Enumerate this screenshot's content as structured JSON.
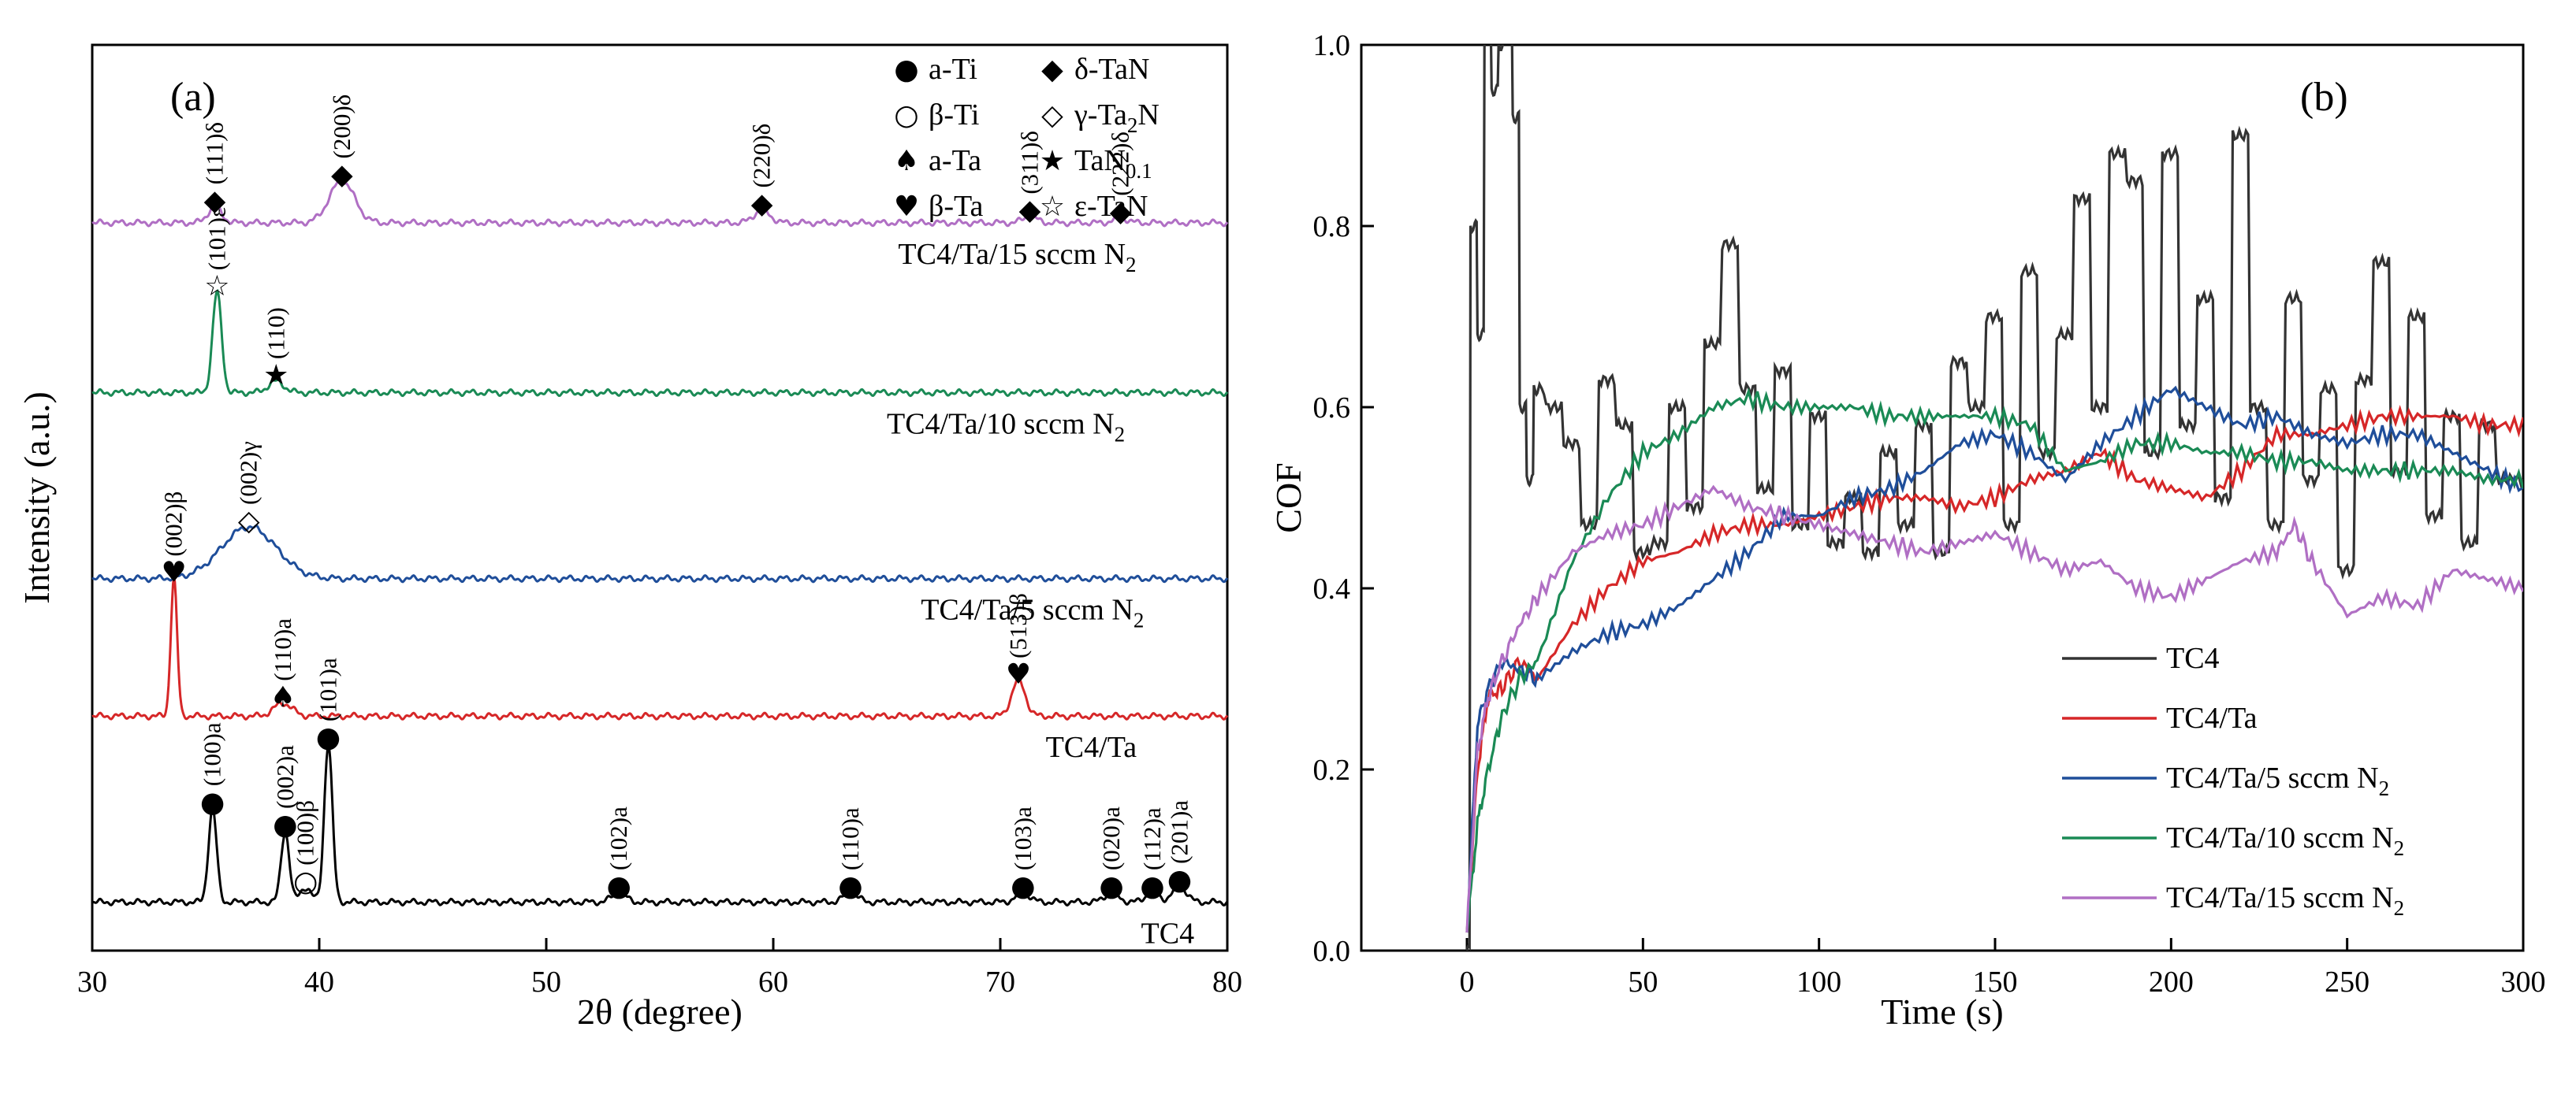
{
  "chart_data": [
    {
      "panel": "(a)",
      "type": "line",
      "title": "",
      "xlabel": "2θ (degree)",
      "ylabel": "Intensity (a.u.)",
      "xlim": [
        30,
        80
      ],
      "xticks": [
        "30",
        "40",
        "50",
        "60",
        "70",
        "80"
      ],
      "xtick_values": [
        30,
        40,
        50,
        60,
        70,
        80
      ],
      "ylim": [
        0,
        5.6
      ],
      "phase_legend": [
        {
          "symbol": "●",
          "label": "a-Ti"
        },
        {
          "symbol": "○",
          "label": "β-Ti"
        },
        {
          "symbol": "♠",
          "label": "a-Ta"
        },
        {
          "symbol": "♥",
          "label": "β-Ta"
        },
        {
          "symbol": "◆",
          "label": "δ-TaN"
        },
        {
          "symbol": "◇",
          "label": "γ-Ta",
          "sub": "2",
          "after": "N"
        },
        {
          "symbol": "★",
          "label": "TaN",
          "sub": "0.1",
          "after": ""
        },
        {
          "symbol": "☆",
          "label": "ε-TaN"
        }
      ],
      "series": [
        {
          "name": "TC4",
          "label_main": "TC4",
          "label_sub": "",
          "color": "#000000",
          "offset": 0.3,
          "label_x": 76.2,
          "peaks": [
            {
              "x": 35.3,
              "h": 0.58,
              "w": 0.18,
              "marker": "●",
              "label": "(100)a"
            },
            {
              "x": 38.5,
              "h": 0.44,
              "w": 0.18,
              "marker": "●",
              "label": "(002)a"
            },
            {
              "x": 39.4,
              "h": 0.09,
              "w": 0.25,
              "marker": "○",
              "label": "(100)β"
            },
            {
              "x": 40.4,
              "h": 0.98,
              "w": 0.18,
              "marker": "●",
              "label": "(101)a"
            },
            {
              "x": 53.2,
              "h": 0.06,
              "w": 0.3,
              "marker": "●",
              "label": "(102)a"
            },
            {
              "x": 63.4,
              "h": 0.06,
              "w": 0.3,
              "marker": "●",
              "label": "(110)a"
            },
            {
              "x": 71.0,
              "h": 0.06,
              "w": 0.3,
              "marker": "●",
              "label": "(103)a"
            },
            {
              "x": 74.9,
              "h": 0.06,
              "w": 0.3,
              "marker": "●",
              "label": "(020)a"
            },
            {
              "x": 76.7,
              "h": 0.06,
              "w": 0.3,
              "marker": "●",
              "label": "(112)a"
            },
            {
              "x": 77.9,
              "h": 0.1,
              "w": 0.3,
              "marker": "●",
              "label": "(201)a"
            }
          ]
        },
        {
          "name": "TC4/Ta",
          "label_main": "TC4/Ta",
          "label_sub": "",
          "color": "#d62728",
          "offset": 1.45,
          "label_x": 72.0,
          "peaks": [
            {
              "x": 33.6,
              "h": 0.85,
              "w": 0.14,
              "marker": "♥",
              "label": "(002)β"
            },
            {
              "x": 38.4,
              "h": 0.08,
              "w": 0.4,
              "marker": "♠",
              "label": "(110)a"
            },
            {
              "x": 70.8,
              "h": 0.22,
              "w": 0.3,
              "marker": "♥",
              "label": "(513)β"
            }
          ]
        },
        {
          "name": "TC4/Ta/5 sccm N2",
          "label_main": "TC4/Ta/5 sccm N",
          "label_sub": "2",
          "color": "#1f4e9a",
          "offset": 2.3,
          "label_x": 66.5,
          "peaks": [
            {
              "x": 36.9,
              "h": 0.32,
              "w": 1.2,
              "marker": "◇",
              "label": "(002)γ"
            }
          ]
        },
        {
          "name": "TC4/Ta/10 sccm N2",
          "label_main": "TC4/Ta/10 sccm N",
          "label_sub": "2",
          "color": "#1a8a55",
          "offset": 3.45,
          "label_x": 65.0,
          "peaks": [
            {
              "x": 35.5,
              "h": 0.62,
              "w": 0.2,
              "marker": "☆",
              "label": "(101)ε"
            },
            {
              "x": 38.1,
              "h": 0.07,
              "w": 0.35,
              "marker": "★",
              "label": "(110)"
            }
          ]
        },
        {
          "name": "TC4/Ta/15 sccm N2",
          "label_main": "TC4/Ta/15 sccm N",
          "label_sub": "2",
          "color": "#b06fc4",
          "offset": 4.5,
          "label_x": 65.5,
          "peaks": [
            {
              "x": 35.4,
              "h": 0.1,
              "w": 0.3,
              "marker": "◆",
              "label": "(111)δ"
            },
            {
              "x": 41.0,
              "h": 0.26,
              "w": 0.55,
              "marker": "◆",
              "label": "(200)δ"
            },
            {
              "x": 59.5,
              "h": 0.08,
              "w": 0.35,
              "marker": "◆",
              "label": "(220)δ"
            },
            {
              "x": 71.3,
              "h": 0.04,
              "w": 0.3,
              "marker": "◆",
              "label": "(311)δ"
            },
            {
              "x": 75.3,
              "h": 0.03,
              "w": 0.3,
              "marker": "◆",
              "label": "(222)δ"
            }
          ]
        }
      ]
    },
    {
      "panel": "(b)",
      "type": "line",
      "title": "",
      "xlabel": "Time (s)",
      "ylabel": "COF",
      "xlim": [
        -30,
        300
      ],
      "ylim": [
        0,
        1.0
      ],
      "xticks": [
        "0",
        "50",
        "100",
        "150",
        "200",
        "250",
        "300"
      ],
      "xtick_values": [
        0,
        50,
        100,
        150,
        200,
        250,
        300
      ],
      "yticks": [
        "0.0",
        "0.2",
        "0.4",
        "0.6",
        "0.8",
        "1.0"
      ],
      "ytick_values": [
        0,
        0.2,
        0.4,
        0.6,
        0.8,
        1.0
      ],
      "legend_position": "bottom-right",
      "series": [
        {
          "name": "TC4",
          "label_main": "TC4",
          "label_sub": "",
          "color": "#333333",
          "steps": true,
          "x": [
            0,
            2,
            4,
            6,
            8,
            10,
            12,
            14,
            16,
            18,
            20,
            25,
            30,
            35,
            40,
            45,
            50,
            55,
            60,
            65,
            70,
            75,
            80,
            85,
            90,
            95,
            100,
            105,
            110,
            115,
            120,
            125,
            130,
            135,
            140,
            145,
            150,
            155,
            160,
            165,
            170,
            175,
            180,
            185,
            190,
            195,
            200,
            205,
            210,
            215,
            220,
            225,
            230,
            235,
            240,
            245,
            250,
            255,
            260,
            265,
            270,
            275,
            280,
            285,
            290,
            295,
            300
          ],
          "y": [
            0.0,
            0.8,
            0.68,
            1.02,
            0.95,
            1.0,
            1.02,
            0.92,
            0.6,
            0.52,
            0.62,
            0.6,
            0.56,
            0.47,
            0.63,
            0.58,
            0.44,
            0.45,
            0.6,
            0.49,
            0.67,
            0.78,
            0.62,
            0.51,
            0.64,
            0.47,
            0.59,
            0.45,
            0.5,
            0.44,
            0.55,
            0.47,
            0.58,
            0.44,
            0.65,
            0.6,
            0.7,
            0.47,
            0.75,
            0.55,
            0.68,
            0.83,
            0.6,
            0.88,
            0.85,
            0.55,
            0.88,
            0.58,
            0.72,
            0.5,
            0.9,
            0.6,
            0.47,
            0.72,
            0.52,
            0.62,
            0.42,
            0.63,
            0.76,
            0.53,
            0.7,
            0.48,
            0.59,
            0.45,
            0.58,
            0.52,
            0.52
          ]
        },
        {
          "name": "TC4/Ta",
          "label_main": "TC4/Ta",
          "label_sub": "",
          "color": "#d62728",
          "steps": false,
          "x": [
            0,
            3,
            6,
            10,
            15,
            20,
            30,
            40,
            50,
            60,
            70,
            80,
            90,
            100,
            110,
            120,
            130,
            140,
            150,
            160,
            170,
            180,
            190,
            200,
            210,
            220,
            230,
            240,
            250,
            260,
            270,
            280,
            290,
            300
          ],
          "y": [
            0.02,
            0.2,
            0.28,
            0.29,
            0.32,
            0.3,
            0.36,
            0.4,
            0.43,
            0.44,
            0.46,
            0.47,
            0.47,
            0.48,
            0.49,
            0.5,
            0.5,
            0.49,
            0.5,
            0.52,
            0.53,
            0.55,
            0.52,
            0.51,
            0.5,
            0.53,
            0.57,
            0.57,
            0.58,
            0.59,
            0.59,
            0.59,
            0.58,
            0.58
          ]
        },
        {
          "name": "TC4/Ta/5 sccm N2",
          "label_main": "TC4/Ta/5 sccm N",
          "label_sub": "2",
          "color": "#1f4e9a",
          "steps": false,
          "x": [
            0,
            3,
            6,
            10,
            15,
            20,
            30,
            40,
            50,
            60,
            70,
            80,
            90,
            100,
            110,
            120,
            130,
            140,
            150,
            160,
            170,
            180,
            190,
            200,
            210,
            220,
            230,
            240,
            250,
            260,
            270,
            280,
            290,
            300
          ],
          "y": [
            0.02,
            0.25,
            0.29,
            0.32,
            0.31,
            0.3,
            0.33,
            0.35,
            0.36,
            0.38,
            0.41,
            0.44,
            0.48,
            0.48,
            0.5,
            0.51,
            0.53,
            0.56,
            0.57,
            0.55,
            0.52,
            0.56,
            0.59,
            0.62,
            0.6,
            0.58,
            0.59,
            0.57,
            0.56,
            0.57,
            0.57,
            0.55,
            0.53,
            0.51
          ]
        },
        {
          "name": "TC4/Ta/10 sccm N2",
          "label_main": "TC4/Ta/10 sccm N",
          "label_sub": "2",
          "color": "#1a8a55",
          "steps": false,
          "x": [
            0,
            3,
            6,
            10,
            15,
            20,
            30,
            40,
            50,
            60,
            70,
            80,
            90,
            100,
            110,
            120,
            130,
            140,
            150,
            160,
            170,
            180,
            190,
            200,
            210,
            220,
            230,
            240,
            250,
            260,
            270,
            280,
            290,
            300
          ],
          "y": [
            0.02,
            0.14,
            0.2,
            0.26,
            0.3,
            0.32,
            0.43,
            0.5,
            0.55,
            0.57,
            0.6,
            0.61,
            0.6,
            0.6,
            0.6,
            0.59,
            0.59,
            0.59,
            0.59,
            0.58,
            0.53,
            0.54,
            0.56,
            0.56,
            0.55,
            0.55,
            0.54,
            0.54,
            0.53,
            0.53,
            0.53,
            0.53,
            0.52,
            0.52
          ]
        },
        {
          "name": "TC4/Ta/15 sccm N2",
          "label_main": "TC4/Ta/15 sccm N",
          "label_sub": "2",
          "color": "#b06fc4",
          "steps": false,
          "x": [
            0,
            3,
            6,
            10,
            15,
            20,
            30,
            40,
            50,
            60,
            70,
            80,
            90,
            100,
            110,
            120,
            130,
            140,
            150,
            160,
            170,
            180,
            190,
            200,
            210,
            220,
            230,
            235,
            240,
            250,
            260,
            270,
            280,
            290,
            300
          ],
          "y": [
            0.02,
            0.22,
            0.28,
            0.32,
            0.36,
            0.39,
            0.44,
            0.46,
            0.47,
            0.49,
            0.51,
            0.49,
            0.48,
            0.47,
            0.46,
            0.45,
            0.44,
            0.45,
            0.46,
            0.44,
            0.42,
            0.43,
            0.4,
            0.39,
            0.41,
            0.43,
            0.44,
            0.47,
            0.43,
            0.37,
            0.39,
            0.38,
            0.42,
            0.41,
            0.4
          ]
        }
      ]
    }
  ]
}
